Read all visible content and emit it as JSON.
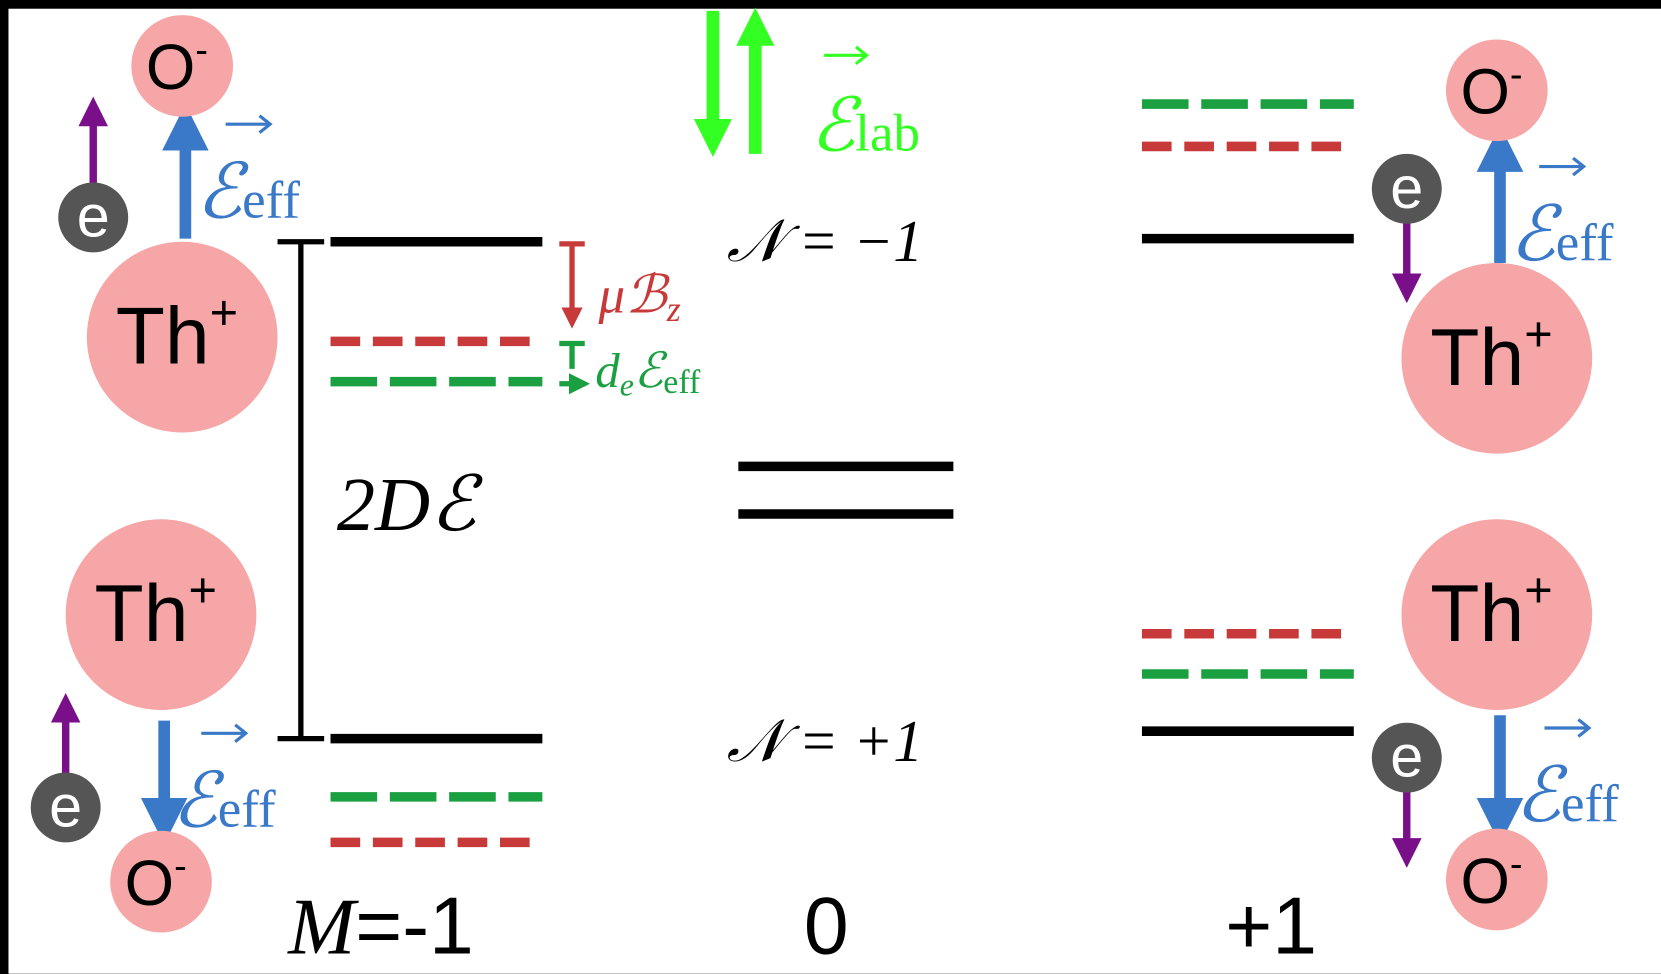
{
  "molecule": {
    "anion": "O",
    "anion_charge": "-",
    "cation": "Th",
    "cation_charge": "+",
    "electron": "e",
    "field": "ℰ",
    "field_subscript": "eff"
  },
  "lab_field": {
    "symbol": "ℰ",
    "subscript": "lab"
  },
  "levels": {
    "upper": "𝒩 = −1",
    "lower": "𝒩 = +1"
  },
  "splittings": {
    "zeeman": "μℬ",
    "zeeman_subscript": "z",
    "edm": "d",
    "edm_subscript": "e",
    "edm_field": "ℰ",
    "edm_field_subscript": "eff",
    "stark": "2Dℰ"
  },
  "m_labels": {
    "symbol": "M",
    "left": "=-1",
    "middle": "0",
    "right": "+1"
  }
}
